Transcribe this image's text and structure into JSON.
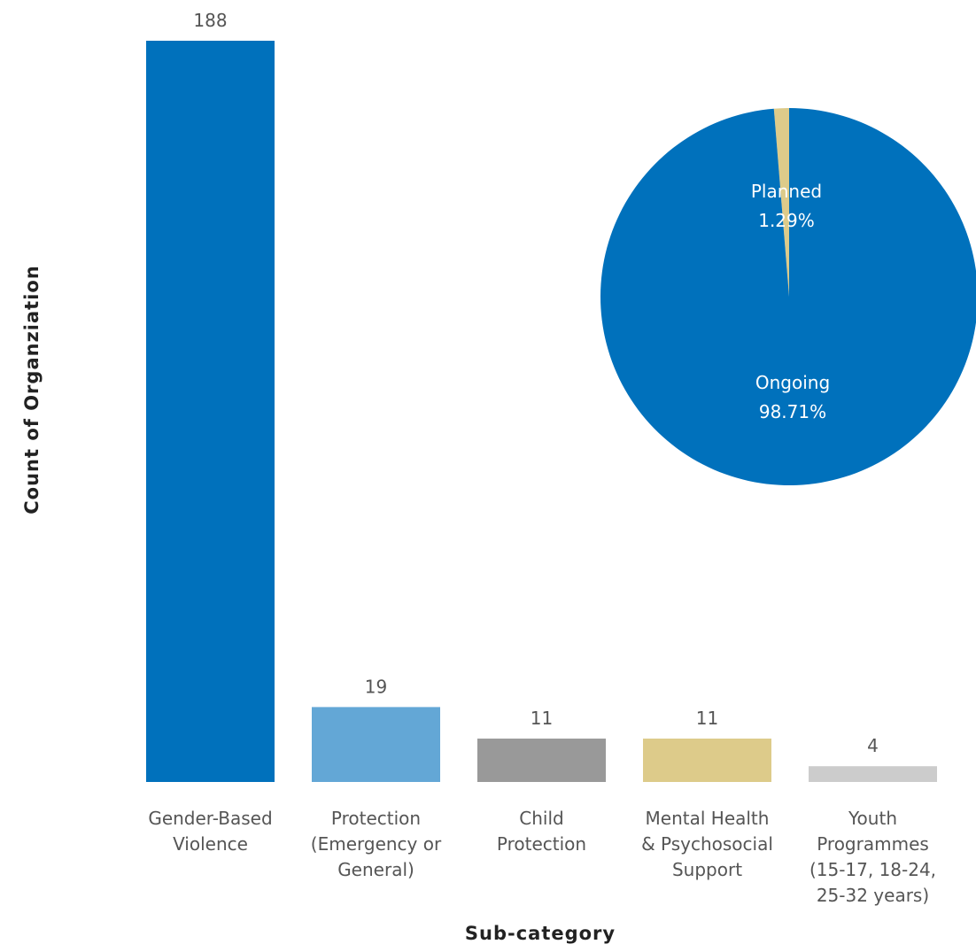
{
  "chart_data": [
    {
      "type": "bar",
      "xlabel": "Sub-category",
      "ylabel": "Count of Organziation",
      "ylim": [
        0,
        188
      ],
      "grid": false,
      "categories": [
        [
          "Gender-Based",
          "Violence"
        ],
        [
          "Protection",
          "(Emergency or",
          "General)"
        ],
        [
          "Child",
          "Protection"
        ],
        [
          "Mental Health",
          "& Psychosocial",
          "Support"
        ],
        [
          "Youth",
          "Programmes",
          "(15-17, 18-24,",
          "25-32 years)"
        ]
      ],
      "values": [
        188,
        19,
        11,
        11,
        4
      ],
      "value_labels": [
        "188",
        "19",
        "11",
        "11",
        "4"
      ],
      "colors": [
        "#0071BC",
        "#63A7D6",
        "#999999",
        "#DDCB8A",
        "#CCCCCC"
      ]
    },
    {
      "type": "pie",
      "slices": [
        {
          "name": "Planned",
          "percent_label": "1.29%",
          "value": 1.29,
          "color": "#DDCB8A"
        },
        {
          "name": "Ongoing",
          "percent_label": "98.71%",
          "value": 98.71,
          "color": "#0071BC"
        }
      ]
    }
  ]
}
